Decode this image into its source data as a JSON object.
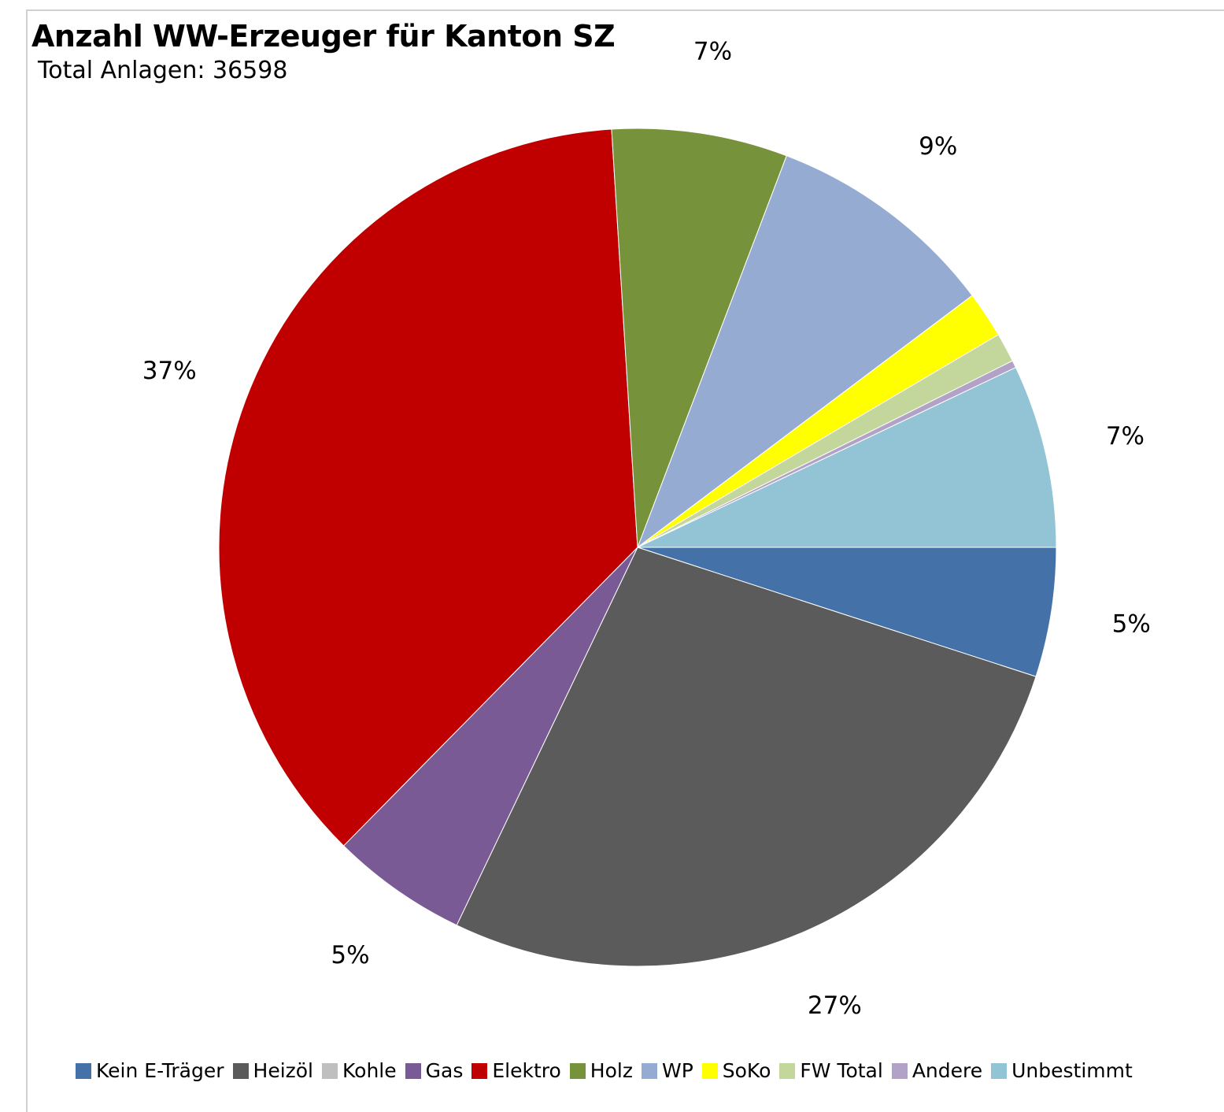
{
  "chart_data": {
    "type": "pie",
    "title": "Anzahl WW-Erzeuger für Kanton SZ",
    "subtitle": "Total Anlagen: 36598",
    "legend_position": "bottom",
    "slices": [
      {
        "name": "Kein E-Träger",
        "percent": 5.3,
        "label": "5%",
        "color": "#4472a8"
      },
      {
        "name": "Heizöl",
        "percent": 28.8,
        "label": "27%",
        "color": "#5b5b5b"
      },
      {
        "name": "Kohle",
        "percent": 0.0,
        "label": "",
        "color": "#bfbfbf"
      },
      {
        "name": "Gas",
        "percent": 5.6,
        "label": "5%",
        "color": "#7a5a94"
      },
      {
        "name": "Elektro",
        "percent": 38.9,
        "label": "37%",
        "color": "#c00000"
      },
      {
        "name": "Holz",
        "percent": 7.2,
        "label": "7%",
        "color": "#76933c"
      },
      {
        "name": "WP",
        "percent": 9.5,
        "label": "9%",
        "color": "#95abd1"
      },
      {
        "name": "SoKo",
        "percent": 1.9,
        "label": "",
        "color": "#ffff00"
      },
      {
        "name": "FW Total",
        "percent": 1.2,
        "label": "",
        "color": "#c3d69b"
      },
      {
        "name": "Andere",
        "percent": 0.3,
        "label": "",
        "color": "#b3a2c7"
      },
      {
        "name": "Unbestimmt",
        "percent": 7.5,
        "label": "7%",
        "color": "#93c4d6"
      }
    ]
  }
}
